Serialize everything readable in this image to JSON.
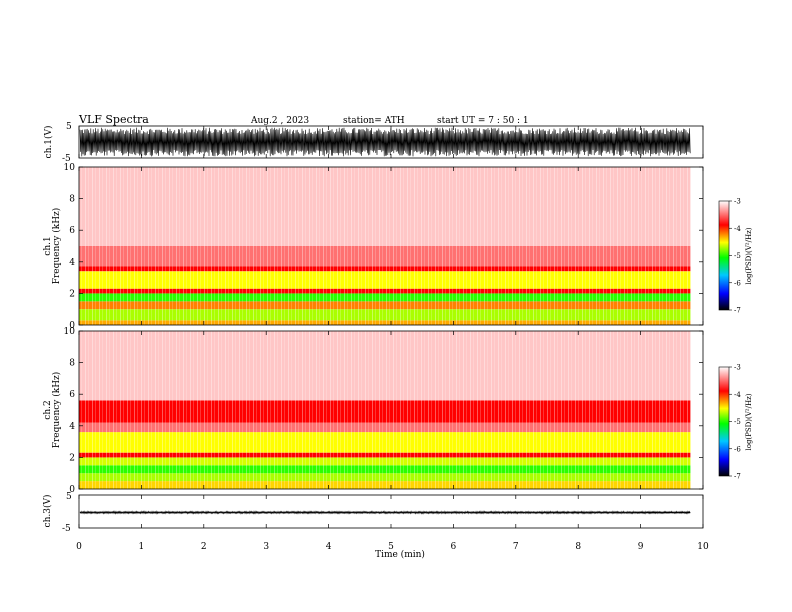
{
  "header": {
    "title": "VLF  Spectra",
    "date": "Aug.2  , 2023",
    "station": "station= ATH",
    "start": "start  UT  =   7  : 50 : 1"
  },
  "chart_data": [
    {
      "type": "line",
      "panel": "ch1-waveform",
      "ylabel": "ch.1(V)",
      "ylim": [
        -5,
        5
      ],
      "yticks": [
        "5",
        "-5"
      ],
      "xlim": [
        0,
        10
      ],
      "x_end_min": 9.8,
      "envelope_amplitude_v": 4.5,
      "color": "#000000"
    },
    {
      "type": "heatmap",
      "panel": "ch1-spectrogram",
      "ylabel": "Frequency  (kHz)",
      "ylabel_channel": "ch.1",
      "ylim": [
        0,
        10
      ],
      "yticks": [
        "0",
        "2",
        "4",
        "6",
        "8",
        "10"
      ],
      "xlim": [
        0,
        10
      ],
      "x_end_min": 9.8,
      "bands": [
        {
          "from_khz": 0.0,
          "to_khz": 0.3,
          "level": -4.3
        },
        {
          "from_khz": 0.3,
          "to_khz": 1.0,
          "level": -4.7
        },
        {
          "from_khz": 1.0,
          "to_khz": 1.5,
          "level": -4.2
        },
        {
          "from_khz": 1.5,
          "to_khz": 2.0,
          "level": -5.0
        },
        {
          "from_khz": 2.0,
          "to_khz": 2.3,
          "level": -3.9
        },
        {
          "from_khz": 2.3,
          "to_khz": 3.4,
          "level": -4.5
        },
        {
          "from_khz": 3.4,
          "to_khz": 3.7,
          "level": -3.9
        },
        {
          "from_khz": 3.7,
          "to_khz": 5.0,
          "level": -3.5
        },
        {
          "from_khz": 5.0,
          "to_khz": 10.0,
          "level": -3.2
        }
      ]
    },
    {
      "type": "heatmap",
      "panel": "ch2-spectrogram",
      "ylabel": "Frequency  (kHz)",
      "ylabel_channel": "ch.2",
      "ylim": [
        0,
        10
      ],
      "yticks": [
        "0",
        "2",
        "4",
        "6",
        "8",
        "10"
      ],
      "xlim": [
        0,
        10
      ],
      "x_end_min": 9.8,
      "bands": [
        {
          "from_khz": 0.0,
          "to_khz": 0.5,
          "level": -4.4
        },
        {
          "from_khz": 0.5,
          "to_khz": 1.0,
          "level": -4.7
        },
        {
          "from_khz": 1.0,
          "to_khz": 1.5,
          "level": -5.0
        },
        {
          "from_khz": 1.5,
          "to_khz": 2.0,
          "level": -4.6
        },
        {
          "from_khz": 2.0,
          "to_khz": 2.3,
          "level": -3.9
        },
        {
          "from_khz": 2.3,
          "to_khz": 3.6,
          "level": -4.5
        },
        {
          "from_khz": 3.6,
          "to_khz": 4.2,
          "level": -3.5
        },
        {
          "from_khz": 4.2,
          "to_khz": 5.6,
          "level": -3.9
        },
        {
          "from_khz": 5.6,
          "to_khz": 10.0,
          "level": -3.2
        }
      ]
    },
    {
      "type": "line",
      "panel": "ch3-waveform",
      "ylabel": "ch.3(V)",
      "ylim": [
        -5,
        5
      ],
      "yticks": [
        "5",
        "0",
        "-5"
      ],
      "xlim": [
        0,
        10
      ],
      "x_end_min": 9.8,
      "baseline_v": -0.3,
      "envelope_amplitude_v": 0.3,
      "color": "#000000"
    }
  ],
  "xaxis": {
    "label": "Time  (min)",
    "ticks": [
      "0",
      "1",
      "2",
      "3",
      "4",
      "5",
      "6",
      "7",
      "8",
      "9",
      "10"
    ]
  },
  "colorbar": {
    "label": "log(PSD)(V²/Hz)",
    "range": [
      -7,
      -3
    ],
    "ticks": [
      "-3",
      "-4",
      "-5",
      "-6",
      "-7"
    ],
    "colors": [
      "#000000",
      "#0000ff",
      "#00c8ff",
      "#00ff00",
      "#ffff00",
      "#ff0000",
      "#ffffff"
    ]
  }
}
